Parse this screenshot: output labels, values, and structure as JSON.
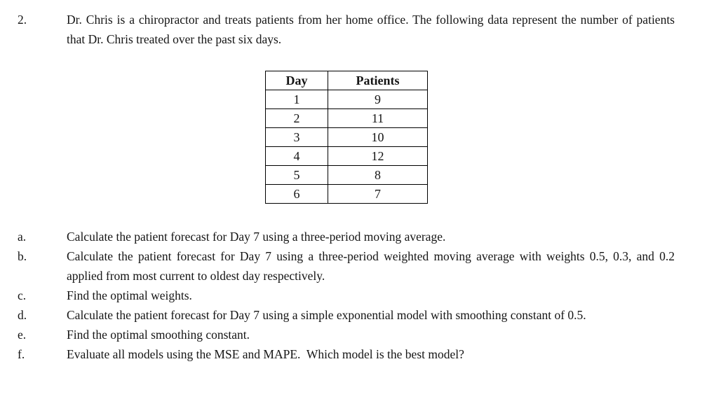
{
  "page": {
    "background": "#ffffff",
    "text_color": "#151515"
  },
  "problem": {
    "number": "2.",
    "text": "Dr. Chris is a chiropractor and treats patients from her home office. The following data represent the number of patients that Dr. Chris treated over the past six days."
  },
  "patient_table": {
    "headers": [
      "Day",
      "Patients"
    ],
    "rows": [
      {
        "day": "1",
        "patients": "9"
      },
      {
        "day": "2",
        "patients": "11"
      },
      {
        "day": "3",
        "patients": "10"
      },
      {
        "day": "4",
        "patients": "12"
      },
      {
        "day": "5",
        "patients": "8"
      },
      {
        "day": "6",
        "patients": "7"
      }
    ]
  },
  "questions": [
    {
      "label": "a.",
      "text": "Calculate the patient forecast for Day 7 using a three-period moving average."
    },
    {
      "label": "b.",
      "text": "Calculate the patient forecast for Day 7 using a three-period weighted moving average with weights 0.5, 0.3, and 0.2 applied from most current to oldest day respectively."
    },
    {
      "label": "c.",
      "text": "Find the optimal weights."
    },
    {
      "label": "d.",
      "text": "Calculate the patient forecast for Day 7 using a simple exponential model with smoothing constant of 0.5."
    },
    {
      "label": "e.",
      "text": "Find the optimal smoothing constant."
    },
    {
      "label": "f.",
      "text": "Evaluate all models using the MSE and MAPE.  Which model is the best model?"
    }
  ]
}
